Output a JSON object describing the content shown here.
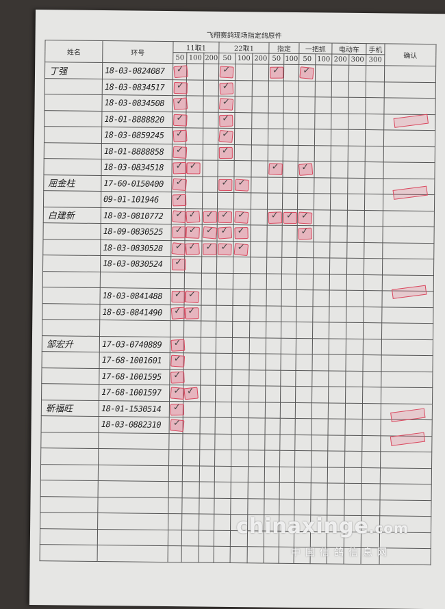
{
  "title": "飞翔赛鸽现场指定鸽原件",
  "headers": {
    "name": "姓名",
    "ring": "环号",
    "groups": [
      {
        "label": "11取1",
        "subs": [
          "50",
          "100",
          "200"
        ]
      },
      {
        "label": "22取1",
        "subs": [
          "50",
          "100",
          "200"
        ]
      },
      {
        "label": "指定",
        "subs": [
          "50",
          "100"
        ]
      },
      {
        "label": "一把抓",
        "subs": [
          "50",
          "100"
        ]
      },
      {
        "label": "电动车",
        "subs": [
          "200",
          "300"
        ]
      },
      {
        "label": "手机",
        "subs": [
          "300"
        ]
      }
    ],
    "confirm": "确认"
  },
  "rows": [
    {
      "name": "丁强",
      "ring": "18-03-0824087",
      "marks": [
        0,
        3,
        6,
        8
      ]
    },
    {
      "name": "",
      "ring": "18-03-0834517",
      "marks": [
        0,
        3
      ]
    },
    {
      "name": "",
      "ring": "18-03-0834508",
      "marks": [
        0,
        3
      ]
    },
    {
      "name": "",
      "ring": "18-01-8888820",
      "marks": [
        0,
        3
      ]
    },
    {
      "name": "",
      "ring": "18-03-0859245",
      "marks": [
        0,
        3
      ]
    },
    {
      "name": "",
      "ring": "18-01-8888858",
      "marks": [
        0,
        3
      ]
    },
    {
      "name": "",
      "ring": "18-03-0834518",
      "marks": [
        0,
        1,
        6,
        8
      ]
    },
    {
      "name": "屈金柱",
      "ring": "17-60-0150400",
      "marks": [
        0,
        3,
        4
      ]
    },
    {
      "name": "",
      "ring": "09-01-101946",
      "marks": [
        0
      ]
    },
    {
      "name": "白建新",
      "ring": "18-03-0810772",
      "marks": [
        0,
        1,
        2,
        3,
        4,
        6,
        7,
        8
      ]
    },
    {
      "name": "",
      "ring": "18-09-0830525",
      "marks": [
        0,
        1,
        2,
        3,
        4,
        8
      ]
    },
    {
      "name": "",
      "ring": "18-03-0830528",
      "marks": [
        0,
        1,
        2,
        3,
        4
      ]
    },
    {
      "name": "",
      "ring": "18-03-0830524",
      "marks": [
        0
      ]
    },
    {
      "name": "",
      "ring": "",
      "marks": []
    },
    {
      "name": "",
      "ring": "18-03-0841488",
      "marks": [
        0,
        1
      ]
    },
    {
      "name": "",
      "ring": "18-03-0841490",
      "marks": [
        0,
        1
      ]
    },
    {
      "name": "",
      "ring": "",
      "marks": []
    },
    {
      "name": "邹宏升",
      "ring": "17-03-0740889",
      "marks": [
        0
      ]
    },
    {
      "name": "",
      "ring": "17-68-1001601",
      "marks": [
        0
      ]
    },
    {
      "name": "",
      "ring": "17-68-1001595",
      "marks": [
        0
      ]
    },
    {
      "name": "",
      "ring": "17-68-1001597",
      "marks": [
        0,
        1
      ]
    },
    {
      "name": "靳福旺",
      "ring": "18-01-1530514",
      "marks": [
        0
      ]
    },
    {
      "name": "",
      "ring": "18-03-0882310",
      "marks": [
        0
      ]
    },
    {
      "name": "",
      "ring": "",
      "marks": []
    },
    {
      "name": "",
      "ring": "",
      "marks": []
    },
    {
      "name": "",
      "ring": "",
      "marks": []
    },
    {
      "name": "",
      "ring": "",
      "marks": []
    },
    {
      "name": "",
      "ring": "",
      "marks": []
    },
    {
      "name": "",
      "ring": "",
      "marks": []
    },
    {
      "name": "",
      "ring": "",
      "marks": []
    },
    {
      "name": "",
      "ring": "",
      "marks": []
    }
  ],
  "stamp_color": "#d9485e",
  "watermark": {
    "brand": "chinaxinge",
    "domain": ".com",
    "site": "中国信鸽信息网"
  }
}
